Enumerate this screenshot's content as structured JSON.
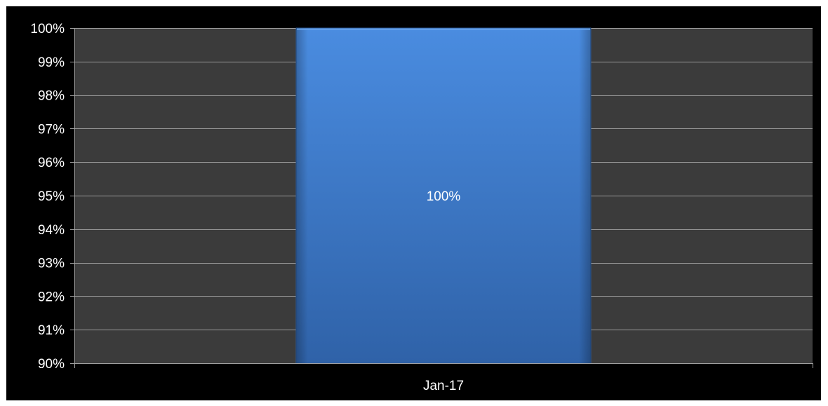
{
  "chart_data": {
    "type": "bar",
    "categories": [
      "Jan-17"
    ],
    "values": [
      100
    ],
    "data_labels": [
      "100%"
    ],
    "ylim": [
      90,
      100
    ],
    "yticks": [
      90,
      91,
      92,
      93,
      94,
      95,
      96,
      97,
      98,
      99,
      100
    ],
    "ytick_labels": [
      "90%",
      "91%",
      "92%",
      "93%",
      "94%",
      "95%",
      "96%",
      "97%",
      "98%",
      "99%",
      "100%"
    ],
    "title": "",
    "xlabel": "",
    "ylabel": "",
    "grid": true,
    "legend": "none"
  },
  "colors": {
    "background": "#000000",
    "plot_area": "#3b3b3b",
    "gridline": "#9a9a9a",
    "axis": "#a0a0a0",
    "bar_top": "#4a8ce0",
    "bar_bottom": "#2f62a8",
    "text": "#ffffff"
  }
}
